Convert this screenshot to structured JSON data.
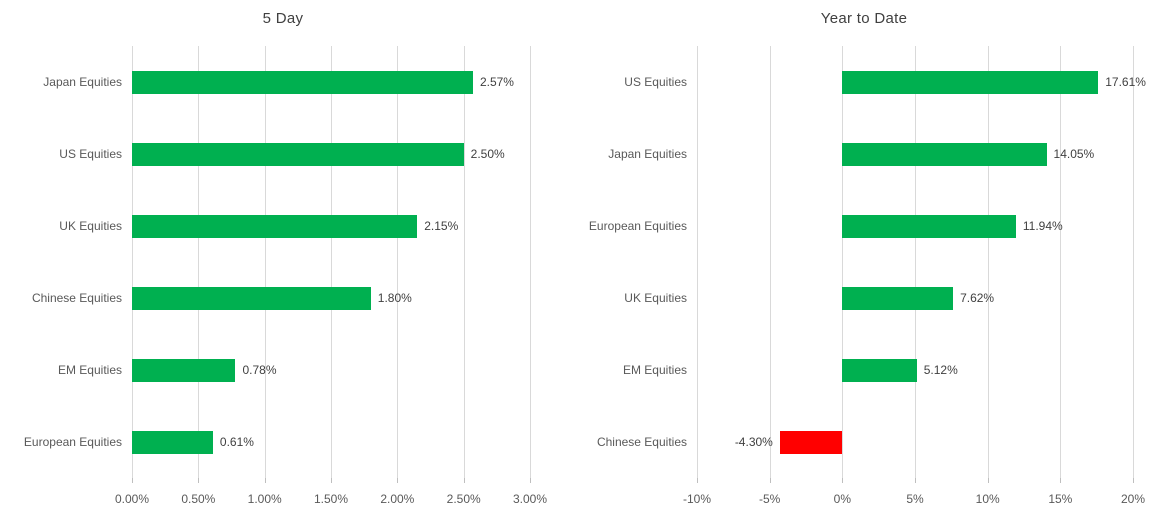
{
  "colors": {
    "positive_bar": "#00B050",
    "negative_bar": "#FF0000",
    "gridline": "#D9D9D9",
    "tick_mark": "#BFBFBF",
    "axis_text": "#595959",
    "value_text": "#404040",
    "title_text": "#404040",
    "background": "#FFFFFF"
  },
  "chart_data": [
    {
      "type": "bar",
      "orientation": "horizontal",
      "title": "5 Day",
      "categories": [
        "Japan Equities",
        "US Equities",
        "UK Equities",
        "Chinese Equities",
        "EM Equities",
        "European Equities"
      ],
      "values": [
        2.57,
        2.5,
        2.15,
        1.8,
        0.78,
        0.61
      ],
      "value_labels": [
        "2.57%",
        "2.50%",
        "2.15%",
        "1.80%",
        "0.78%",
        "0.61%"
      ],
      "xlim": [
        0,
        3
      ],
      "xticks": [
        0,
        0.5,
        1,
        1.5,
        2,
        2.5,
        3
      ],
      "xtick_labels": [
        "0.00%",
        "0.50%",
        "1.00%",
        "1.50%",
        "2.00%",
        "2.50%",
        "3.00%"
      ],
      "grid": true,
      "legend": false
    },
    {
      "type": "bar",
      "orientation": "horizontal",
      "title": "Year to Date",
      "categories": [
        "US Equities",
        "Japan Equities",
        "European Equities",
        "UK Equities",
        "EM Equities",
        "Chinese Equities"
      ],
      "values": [
        17.61,
        14.05,
        11.94,
        7.62,
        5.12,
        -4.3
      ],
      "value_labels": [
        "17.61%",
        "14.05%",
        "11.94%",
        "7.62%",
        "5.12%",
        "-4.30%"
      ],
      "xlim": [
        -10,
        20
      ],
      "xticks": [
        -10,
        -5,
        0,
        5,
        10,
        15,
        20
      ],
      "xtick_labels": [
        "-10%",
        "-5%",
        "0%",
        "5%",
        "10%",
        "15%",
        "20%"
      ],
      "grid": true,
      "legend": false
    }
  ]
}
